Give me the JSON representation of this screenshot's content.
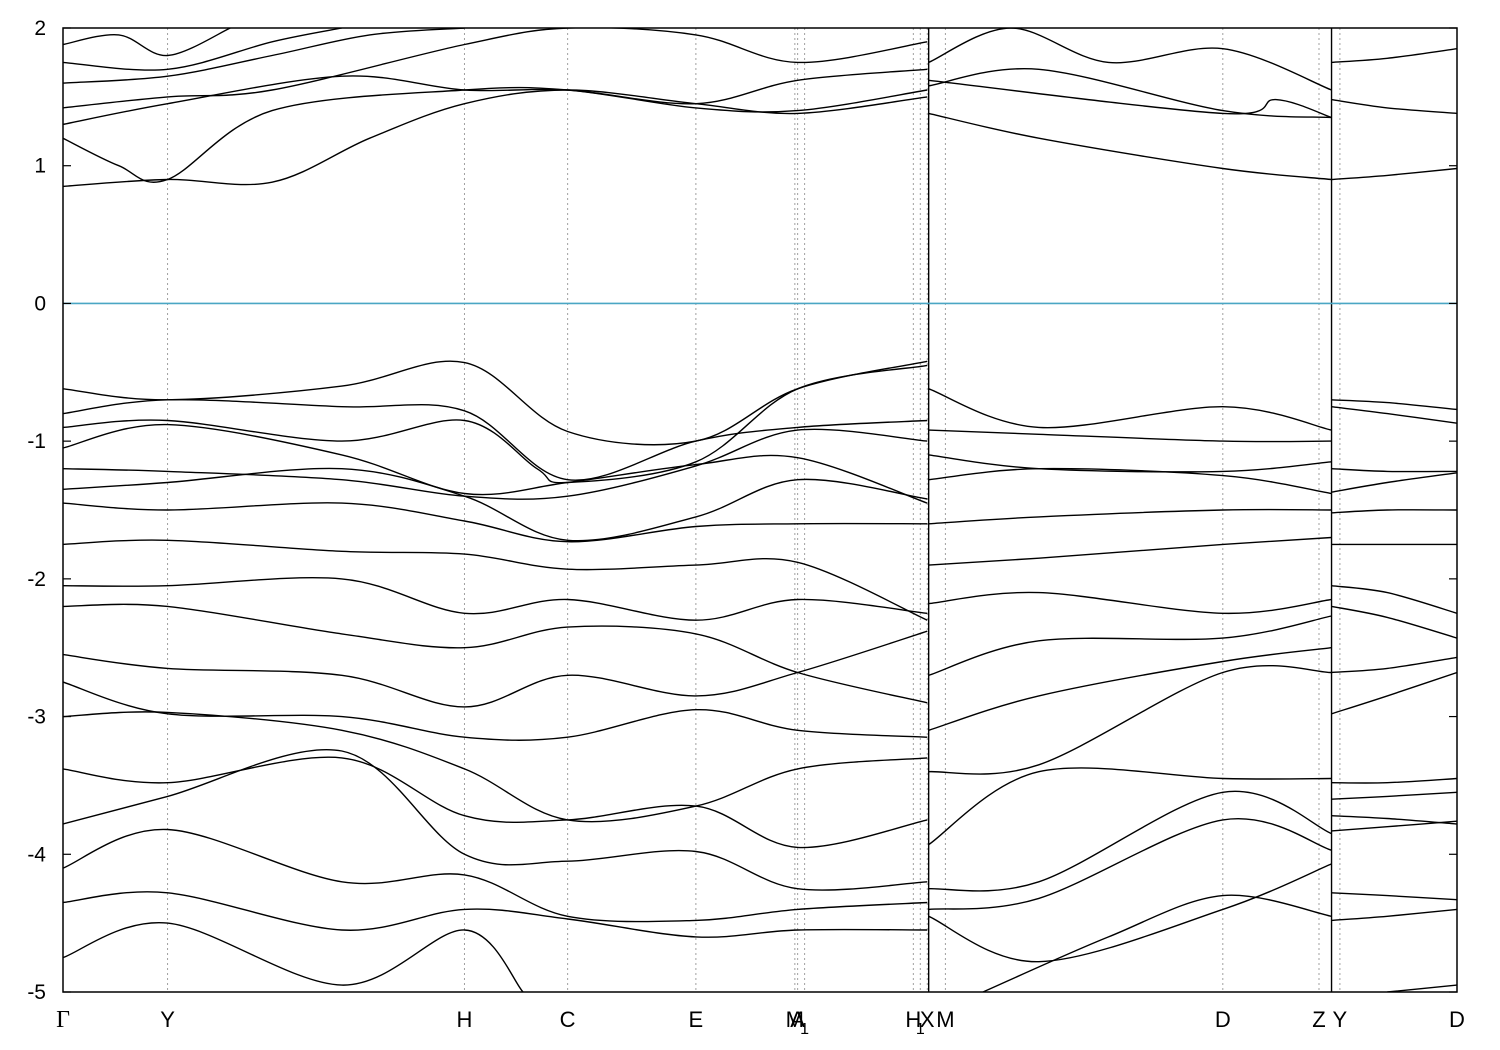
{
  "chart_data": {
    "type": "line",
    "title": "",
    "xlabel": "",
    "ylabel": "",
    "ylim": [
      -5,
      2
    ],
    "y_ticks": [
      "2",
      "1",
      "0",
      "-1",
      "-2",
      "-3",
      "-4",
      "-5"
    ],
    "y_tick_values": [
      2,
      1,
      0,
      -1,
      -2,
      -3,
      -4,
      -5
    ],
    "fermi_level": 0,
    "grid": "vertical dashed lines at high-symmetry points",
    "colors": {
      "bands": "#000000",
      "fermi_line": "#4aa6c4",
      "grid": "#a0a0a0"
    },
    "kpoints": [
      {
        "label": "Γ",
        "pos": 0.0
      },
      {
        "label": "Y",
        "pos": 0.075
      },
      {
        "label": "H",
        "pos": 0.288
      },
      {
        "label": "C",
        "pos": 0.362
      },
      {
        "label": "E",
        "pos": 0.454
      },
      {
        "label": "M",
        "pos": 0.525
      },
      {
        "label": "A",
        "pos": 0.527
      },
      {
        "label": "1",
        "pos": 0.532
      },
      {
        "label": "H",
        "pos": 0.61
      },
      {
        "label": "X",
        "pos": 0.62
      },
      {
        "label": "M",
        "pos": 0.633
      },
      {
        "label": "1",
        "pos": 0.615
      },
      {
        "label": "D",
        "pos": 0.832
      },
      {
        "label": "Z",
        "pos": 0.901
      },
      {
        "label": "Y",
        "pos": 0.916
      },
      {
        "label": "D",
        "pos": 1.0
      }
    ],
    "segment_breaks": [
      0.621,
      0.91
    ],
    "series": [
      {
        "x": [
          0.0,
          0.075,
          0.15,
          0.22,
          0.288,
          0.362,
          0.454,
          0.527,
          0.62
        ],
        "values": [
          0.85,
          0.9,
          0.88,
          1.2,
          1.45,
          1.55,
          1.45,
          1.38,
          1.5
        ]
      },
      {
        "x": [
          0.0,
          0.04,
          0.075,
          0.15,
          0.288,
          0.362,
          0.454,
          0.527,
          0.62
        ],
        "values": [
          1.2,
          1.0,
          0.9,
          1.4,
          1.55,
          1.55,
          1.42,
          1.4,
          1.55
        ]
      },
      {
        "x": [
          0.0,
          0.075,
          0.2,
          0.288,
          0.362,
          0.454,
          0.527,
          0.62
        ],
        "values": [
          1.3,
          1.45,
          1.65,
          1.55,
          1.55,
          1.45,
          1.62,
          1.7
        ]
      },
      {
        "x": [
          0.0,
          0.075,
          0.15,
          0.288,
          0.362,
          0.454,
          0.527,
          0.62
        ],
        "values": [
          1.42,
          1.5,
          1.55,
          1.88,
          2.0,
          1.95,
          1.75,
          1.9
        ]
      },
      {
        "x": [
          0.0,
          0.075,
          0.15,
          0.22,
          0.288
        ],
        "values": [
          1.6,
          1.65,
          1.8,
          1.95,
          2.0
        ]
      },
      {
        "x": [
          0.0,
          0.075,
          0.15,
          0.2
        ],
        "values": [
          1.75,
          1.7,
          1.9,
          2.0
        ]
      },
      {
        "x": [
          0.0,
          0.04,
          0.075,
          0.12
        ],
        "values": [
          1.88,
          1.95,
          1.8,
          2.0
        ]
      },
      {
        "x": [
          0.0,
          0.075,
          0.2,
          0.288,
          0.362,
          0.454,
          0.527,
          0.62
        ],
        "values": [
          -0.62,
          -0.7,
          -0.6,
          -0.43,
          -0.93,
          -1.0,
          -0.62,
          -0.42
        ]
      },
      {
        "x": [
          0.0,
          0.075,
          0.2,
          0.288,
          0.362,
          0.454,
          0.527,
          0.62
        ],
        "values": [
          -0.8,
          -0.7,
          -0.75,
          -0.78,
          -1.28,
          -1.0,
          -0.9,
          -0.85
        ]
      },
      {
        "x": [
          0.0,
          0.075,
          0.2,
          0.288,
          0.34,
          0.362,
          0.454,
          0.527,
          0.62
        ],
        "values": [
          -0.9,
          -0.85,
          -1.0,
          -0.85,
          -1.2,
          -1.3,
          -1.15,
          -0.62,
          -0.45
        ]
      },
      {
        "x": [
          0.0,
          0.075,
          0.2,
          0.288,
          0.362,
          0.454,
          0.527,
          0.62
        ],
        "values": [
          -1.05,
          -0.88,
          -1.1,
          -1.38,
          -1.3,
          -1.17,
          -1.12,
          -1.45
        ]
      },
      {
        "x": [
          0.0,
          0.075,
          0.2,
          0.288,
          0.362,
          0.454,
          0.527,
          0.62
        ],
        "values": [
          -1.2,
          -1.22,
          -1.28,
          -1.4,
          -1.4,
          -1.18,
          -0.92,
          -1.0
        ]
      },
      {
        "x": [
          0.0,
          0.075,
          0.2,
          0.288,
          0.362,
          0.454,
          0.527,
          0.62
        ],
        "values": [
          -1.35,
          -1.3,
          -1.2,
          -1.4,
          -1.72,
          -1.55,
          -1.28,
          -1.42
        ]
      },
      {
        "x": [
          0.0,
          0.075,
          0.2,
          0.288,
          0.362,
          0.454,
          0.527,
          0.62
        ],
        "values": [
          -1.45,
          -1.5,
          -1.45,
          -1.58,
          -1.73,
          -1.62,
          -1.6,
          -1.6
        ]
      },
      {
        "x": [
          0.0,
          0.075,
          0.2,
          0.288,
          0.362,
          0.454,
          0.527,
          0.62
        ],
        "values": [
          -1.75,
          -1.72,
          -1.8,
          -1.82,
          -1.93,
          -1.9,
          -1.88,
          -2.3
        ]
      },
      {
        "x": [
          0.0,
          0.075,
          0.2,
          0.288,
          0.362,
          0.454,
          0.527,
          0.62
        ],
        "values": [
          -2.05,
          -2.05,
          -2.0,
          -2.25,
          -2.15,
          -2.3,
          -2.15,
          -2.25
        ]
      },
      {
        "x": [
          0.0,
          0.075,
          0.2,
          0.288,
          0.362,
          0.454,
          0.527,
          0.62
        ],
        "values": [
          -2.2,
          -2.2,
          -2.4,
          -2.5,
          -2.35,
          -2.4,
          -2.68,
          -2.9
        ]
      },
      {
        "x": [
          0.0,
          0.075,
          0.2,
          0.288,
          0.362,
          0.454,
          0.527,
          0.62
        ],
        "values": [
          -2.55,
          -2.65,
          -2.7,
          -2.93,
          -2.7,
          -2.85,
          -2.68,
          -2.38
        ]
      },
      {
        "x": [
          0.0,
          0.075,
          0.2,
          0.288,
          0.362,
          0.454,
          0.527,
          0.62
        ],
        "values": [
          -2.75,
          -2.98,
          -3.0,
          -3.15,
          -3.15,
          -2.95,
          -3.1,
          -3.15
        ]
      },
      {
        "x": [
          0.0,
          0.075,
          0.2,
          0.288,
          0.362,
          0.454,
          0.527,
          0.62
        ],
        "values": [
          -3.0,
          -2.97,
          -3.1,
          -3.38,
          -3.75,
          -3.65,
          -3.38,
          -3.3
        ]
      },
      {
        "x": [
          0.0,
          0.075,
          0.2,
          0.288,
          0.362,
          0.454,
          0.527,
          0.62
        ],
        "values": [
          -3.38,
          -3.48,
          -3.3,
          -3.72,
          -3.75,
          -3.65,
          -3.95,
          -3.75
        ]
      },
      {
        "x": [
          0.0,
          0.075,
          0.2,
          0.288,
          0.362,
          0.454,
          0.527,
          0.62
        ],
        "values": [
          -3.78,
          -3.58,
          -3.25,
          -4.0,
          -4.05,
          -3.98,
          -4.25,
          -4.2
        ]
      },
      {
        "x": [
          0.0,
          0.075,
          0.2,
          0.288,
          0.362,
          0.454,
          0.527,
          0.62
        ],
        "values": [
          -4.1,
          -3.82,
          -4.2,
          -4.15,
          -4.45,
          -4.48,
          -4.4,
          -4.35
        ]
      },
      {
        "x": [
          0.0,
          0.075,
          0.2,
          0.288,
          0.362,
          0.454,
          0.527,
          0.62
        ],
        "values": [
          -4.35,
          -4.28,
          -4.55,
          -4.4,
          -4.47,
          -4.6,
          -4.55,
          -4.55
        ]
      },
      {
        "x": [
          0.0,
          0.075,
          0.2,
          0.288,
          0.33
        ],
        "values": [
          -4.75,
          -4.5,
          -4.95,
          -4.55,
          -5.0
        ]
      },
      {
        "x": [
          0.621,
          0.7,
          0.832,
          0.91
        ],
        "values": [
          1.38,
          1.2,
          0.98,
          0.9
        ]
      },
      {
        "x": [
          0.621,
          0.7,
          0.832,
          0.91
        ],
        "values": [
          1.58,
          1.7,
          1.4,
          1.35
        ]
      },
      {
        "x": [
          0.621,
          0.68,
          0.75,
          0.832,
          0.91
        ],
        "values": [
          1.75,
          2.0,
          1.75,
          1.85,
          1.55
        ]
      },
      {
        "x": [
          0.621,
          0.832,
          0.87,
          0.91
        ],
        "values": [
          1.62,
          1.38,
          1.48,
          1.35
        ]
      },
      {
        "x": [
          0.621,
          0.7,
          0.832,
          0.91
        ],
        "values": [
          -0.62,
          -0.9,
          -0.75,
          -0.92
        ]
      },
      {
        "x": [
          0.621,
          0.7,
          0.832,
          0.91
        ],
        "values": [
          -0.92,
          -0.95,
          -1.0,
          -1.0
        ]
      },
      {
        "x": [
          0.621,
          0.7,
          0.832,
          0.91
        ],
        "values": [
          -1.1,
          -1.2,
          -1.22,
          -1.15
        ]
      },
      {
        "x": [
          0.621,
          0.7,
          0.832,
          0.91
        ],
        "values": [
          -1.28,
          -1.2,
          -1.25,
          -1.38
        ]
      },
      {
        "x": [
          0.621,
          0.7,
          0.832,
          0.91
        ],
        "values": [
          -1.6,
          -1.55,
          -1.5,
          -1.5
        ]
      },
      {
        "x": [
          0.621,
          0.7,
          0.832,
          0.91
        ],
        "values": [
          -1.9,
          -1.85,
          -1.75,
          -1.7
        ]
      },
      {
        "x": [
          0.621,
          0.7,
          0.832,
          0.91
        ],
        "values": [
          -2.18,
          -2.1,
          -2.25,
          -2.15
        ]
      },
      {
        "x": [
          0.621,
          0.7,
          0.832,
          0.91
        ],
        "values": [
          -2.7,
          -2.45,
          -2.43,
          -2.27
        ]
      },
      {
        "x": [
          0.621,
          0.7,
          0.832,
          0.91
        ],
        "values": [
          -3.1,
          -2.85,
          -2.6,
          -2.5
        ]
      },
      {
        "x": [
          0.621,
          0.7,
          0.832,
          0.91
        ],
        "values": [
          -3.4,
          -3.35,
          -2.68,
          -2.68
        ]
      },
      {
        "x": [
          0.621,
          0.7,
          0.832,
          0.91
        ],
        "values": [
          -3.93,
          -3.4,
          -3.45,
          -3.45
        ]
      },
      {
        "x": [
          0.621,
          0.7,
          0.832,
          0.91
        ],
        "values": [
          -4.25,
          -4.2,
          -3.55,
          -3.85
        ]
      },
      {
        "x": [
          0.621,
          0.7,
          0.832,
          0.91
        ],
        "values": [
          -4.4,
          -4.32,
          -3.75,
          -3.97
        ]
      },
      {
        "x": [
          0.621,
          0.7,
          0.832,
          0.91
        ],
        "values": [
          -4.45,
          -4.78,
          -4.4,
          -4.07
        ]
      },
      {
        "x": [
          0.66,
          0.75,
          0.832,
          0.91
        ],
        "values": [
          -5.0,
          -4.6,
          -4.3,
          -4.45
        ]
      },
      {
        "x": [
          0.91,
          0.95,
          1.0
        ],
        "values": [
          0.9,
          0.93,
          0.98
        ]
      },
      {
        "x": [
          0.91,
          0.95,
          1.0
        ],
        "values": [
          1.48,
          1.42,
          1.38
        ]
      },
      {
        "x": [
          0.91,
          0.95,
          1.0
        ],
        "values": [
          1.75,
          1.78,
          1.85
        ]
      },
      {
        "x": [
          0.91,
          0.95,
          1.0
        ],
        "values": [
          -0.7,
          -0.72,
          -0.77
        ]
      },
      {
        "x": [
          0.91,
          0.95,
          1.0
        ],
        "values": [
          -0.75,
          -0.8,
          -0.87
        ]
      },
      {
        "x": [
          0.91,
          0.95,
          1.0
        ],
        "values": [
          -1.2,
          -1.22,
          -1.22
        ]
      },
      {
        "x": [
          0.91,
          0.95,
          1.0
        ],
        "values": [
          -1.37,
          -1.3,
          -1.23
        ]
      },
      {
        "x": [
          0.91,
          0.95,
          1.0
        ],
        "values": [
          -1.52,
          -1.5,
          -1.5
        ]
      },
      {
        "x": [
          0.91,
          0.95,
          1.0
        ],
        "values": [
          -1.75,
          -1.75,
          -1.75
        ]
      },
      {
        "x": [
          0.91,
          0.95,
          1.0
        ],
        "values": [
          -2.05,
          -2.1,
          -2.25
        ]
      },
      {
        "x": [
          0.91,
          0.95,
          1.0
        ],
        "values": [
          -2.2,
          -2.28,
          -2.43
        ]
      },
      {
        "x": [
          0.91,
          0.95,
          1.0
        ],
        "values": [
          -2.68,
          -2.65,
          -2.57
        ]
      },
      {
        "x": [
          0.91,
          0.95,
          1.0
        ],
        "values": [
          -2.98,
          -2.85,
          -2.68
        ]
      },
      {
        "x": [
          0.91,
          0.95,
          1.0
        ],
        "values": [
          -3.48,
          -3.48,
          -3.45
        ]
      },
      {
        "x": [
          0.91,
          0.95,
          1.0
        ],
        "values": [
          -3.6,
          -3.58,
          -3.55
        ]
      },
      {
        "x": [
          0.91,
          0.95,
          1.0
        ],
        "values": [
          -3.72,
          -3.74,
          -3.78
        ]
      },
      {
        "x": [
          0.91,
          0.95,
          1.0
        ],
        "values": [
          -3.83,
          -3.8,
          -3.76
        ]
      },
      {
        "x": [
          0.91,
          0.95,
          1.0
        ],
        "values": [
          -4.28,
          -4.3,
          -4.33
        ]
      },
      {
        "x": [
          0.91,
          0.95,
          1.0
        ],
        "values": [
          -4.48,
          -4.45,
          -4.4
        ]
      },
      {
        "x": [
          0.95,
          1.0
        ],
        "values": [
          -5.0,
          -4.95
        ]
      }
    ]
  }
}
